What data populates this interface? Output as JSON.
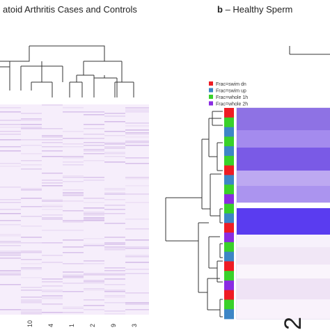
{
  "panel_a": {
    "title": "atoid Arthritis Cases and Controls",
    "column_labels": [
      "10",
      "4",
      "1",
      "2",
      "9",
      "3"
    ],
    "heatmap_base_color": "#f6eefb",
    "heatmap_stripe_color": "#b790d8"
  },
  "panel_b": {
    "letter": "b",
    "title_rest": " – Healthy Sperm",
    "legend": [
      {
        "label": "Frac=swim dn",
        "color": "#ee1c24"
      },
      {
        "label": "Frac=swim up",
        "color": "#3d86c6"
      },
      {
        "label": "Frac=whole 1h",
        "color": "#39d12a"
      },
      {
        "label": "Frac=whole 2h",
        "color": "#8a2be2"
      }
    ],
    "annotation_colors": [
      "#ee1c24",
      "#39d12a",
      "#3d86c6",
      "#39d12a",
      "#3d86c6",
      "#39d12a",
      "#ee1c24",
      "#3d86c6",
      "#39d12a",
      "#8a2be2",
      "#39d12a",
      "#3d86c6",
      "#ee1c24",
      "#8a2be2",
      "#39d12a",
      "#3d86c6",
      "#ee1c24",
      "#39d12a",
      "#8a2be2",
      "#ee1c24",
      "#39d12a",
      "#3d86c6"
    ],
    "heatmap_bands": [
      "#8e72e4",
      "#a48bee",
      "#7a5ae6",
      "#bda9f1",
      "#ab94ef",
      "#ffffff",
      "#5a3cf0",
      "#f7f1fb",
      "#f1e7f6",
      "#faf5fc",
      "#efe3f5",
      "#f9f2fb"
    ],
    "corner_glyph": "2"
  }
}
